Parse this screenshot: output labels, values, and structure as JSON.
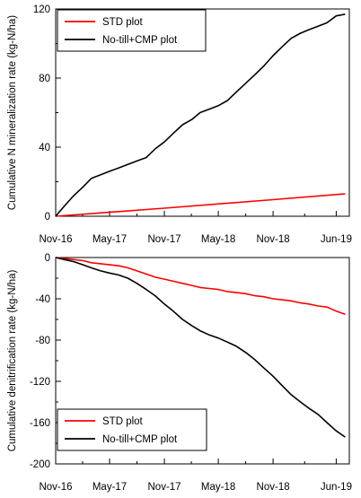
{
  "chart_data": [
    {
      "type": "line",
      "ylabel": "Cumulative N mineralization rate (kg-N/ha)",
      "ylim": [
        0,
        120
      ],
      "yticks": [
        0,
        40,
        80,
        120
      ],
      "ytick_labels": [
        "0",
        "40",
        "80",
        "120"
      ],
      "xlim": [
        "2016-11-01",
        "2019-07-15"
      ],
      "xticks": [
        "2016-11-01",
        "2017-05-01",
        "2017-11-01",
        "2018-05-01",
        "2018-11-01",
        "2019-06-01"
      ],
      "xtick_labels": [
        "Nov-16",
        "May-17",
        "Nov-17",
        "May-18",
        "Nov-18",
        "Jun-19"
      ],
      "legend_position": "top-left",
      "series": [
        {
          "name": "STD plot",
          "color": "#ff0000",
          "x": [
            "2016-11-01",
            "2017-11-01",
            "2018-11-01",
            "2019-07-01"
          ],
          "y": [
            0,
            4.7,
            9.6,
            13
          ]
        },
        {
          "name": "No-till+CMP plot",
          "color": "#000000",
          "x": [
            "2016-11-01",
            "2016-12-01",
            "2017-01-01",
            "2017-02-01",
            "2017-03-01",
            "2017-04-01",
            "2017-05-01",
            "2017-06-01",
            "2017-07-01",
            "2017-08-01",
            "2017-09-01",
            "2017-10-01",
            "2017-11-01",
            "2017-12-01",
            "2018-01-01",
            "2018-02-01",
            "2018-03-01",
            "2018-04-01",
            "2018-05-01",
            "2018-06-01",
            "2018-07-01",
            "2018-08-01",
            "2018-09-01",
            "2018-10-01",
            "2018-11-01",
            "2018-12-01",
            "2019-01-01",
            "2019-02-01",
            "2019-03-01",
            "2019-04-01",
            "2019-05-01",
            "2019-06-01",
            "2019-07-01"
          ],
          "y": [
            0,
            6,
            12,
            17,
            22,
            24,
            26,
            28,
            30,
            32,
            34,
            39,
            43,
            48,
            53,
            56,
            60,
            62,
            64,
            67,
            72,
            77,
            82,
            87,
            93,
            98,
            103,
            106,
            108,
            110,
            112,
            116,
            117
          ]
        }
      ]
    },
    {
      "type": "line",
      "ylabel": "Cumulative denitrification rate (kg-N/ha)",
      "ylim": [
        -200,
        0
      ],
      "yticks": [
        0,
        -40,
        -80,
        -120,
        -160,
        -200
      ],
      "ytick_labels": [
        "0",
        "-40",
        "-80",
        "-120",
        "-160",
        "-200"
      ],
      "xlim": [
        "2016-11-01",
        "2019-07-15"
      ],
      "xticks": [
        "2016-11-01",
        "2017-05-01",
        "2017-11-01",
        "2018-05-01",
        "2018-11-01",
        "2019-06-01"
      ],
      "xtick_labels": [
        "Nov-16",
        "May-17",
        "Nov-17",
        "May-18",
        "Nov-18",
        "Jun-19"
      ],
      "legend_position": "bottom-left",
      "series": [
        {
          "name": "STD plot",
          "color": "#ff0000",
          "x": [
            "2016-11-01",
            "2016-12-01",
            "2017-01-01",
            "2017-02-01",
            "2017-03-01",
            "2017-04-01",
            "2017-05-01",
            "2017-06-01",
            "2017-07-01",
            "2017-08-01",
            "2017-09-01",
            "2017-10-01",
            "2017-11-01",
            "2017-12-01",
            "2018-01-01",
            "2018-02-01",
            "2018-03-01",
            "2018-04-01",
            "2018-05-01",
            "2018-06-01",
            "2018-07-01",
            "2018-08-01",
            "2018-09-01",
            "2018-10-01",
            "2018-11-01",
            "2018-12-01",
            "2019-01-01",
            "2019-02-01",
            "2019-03-01",
            "2019-04-01",
            "2019-05-01",
            "2019-06-01",
            "2019-07-01"
          ],
          "y": [
            0,
            -1,
            -2,
            -3,
            -5,
            -6,
            -7,
            -8,
            -10,
            -13,
            -16,
            -19,
            -21,
            -23,
            -25,
            -27,
            -29,
            -30,
            -31,
            -33,
            -34,
            -35,
            -37,
            -38,
            -40,
            -41,
            -42,
            -44,
            -45,
            -47,
            -48,
            -52,
            -55
          ]
        },
        {
          "name": "No-till+CMP plot",
          "color": "#000000",
          "x": [
            "2016-11-01",
            "2016-12-01",
            "2017-01-01",
            "2017-02-01",
            "2017-03-01",
            "2017-04-01",
            "2017-05-01",
            "2017-06-01",
            "2017-07-01",
            "2017-08-01",
            "2017-09-01",
            "2017-10-01",
            "2017-11-01",
            "2017-12-01",
            "2018-01-01",
            "2018-02-01",
            "2018-03-01",
            "2018-04-01",
            "2018-05-01",
            "2018-06-01",
            "2018-07-01",
            "2018-08-01",
            "2018-09-01",
            "2018-10-01",
            "2018-11-01",
            "2018-12-01",
            "2019-01-01",
            "2019-02-01",
            "2019-03-01",
            "2019-04-01",
            "2019-05-01",
            "2019-06-01",
            "2019-07-01"
          ],
          "y": [
            0,
            -2,
            -4,
            -7,
            -10,
            -13,
            -15,
            -17,
            -20,
            -25,
            -31,
            -37,
            -45,
            -52,
            -60,
            -66,
            -71,
            -75,
            -78,
            -82,
            -86,
            -92,
            -99,
            -107,
            -115,
            -124,
            -133,
            -140,
            -146,
            -152,
            -160,
            -168,
            -174
          ]
        }
      ]
    }
  ]
}
